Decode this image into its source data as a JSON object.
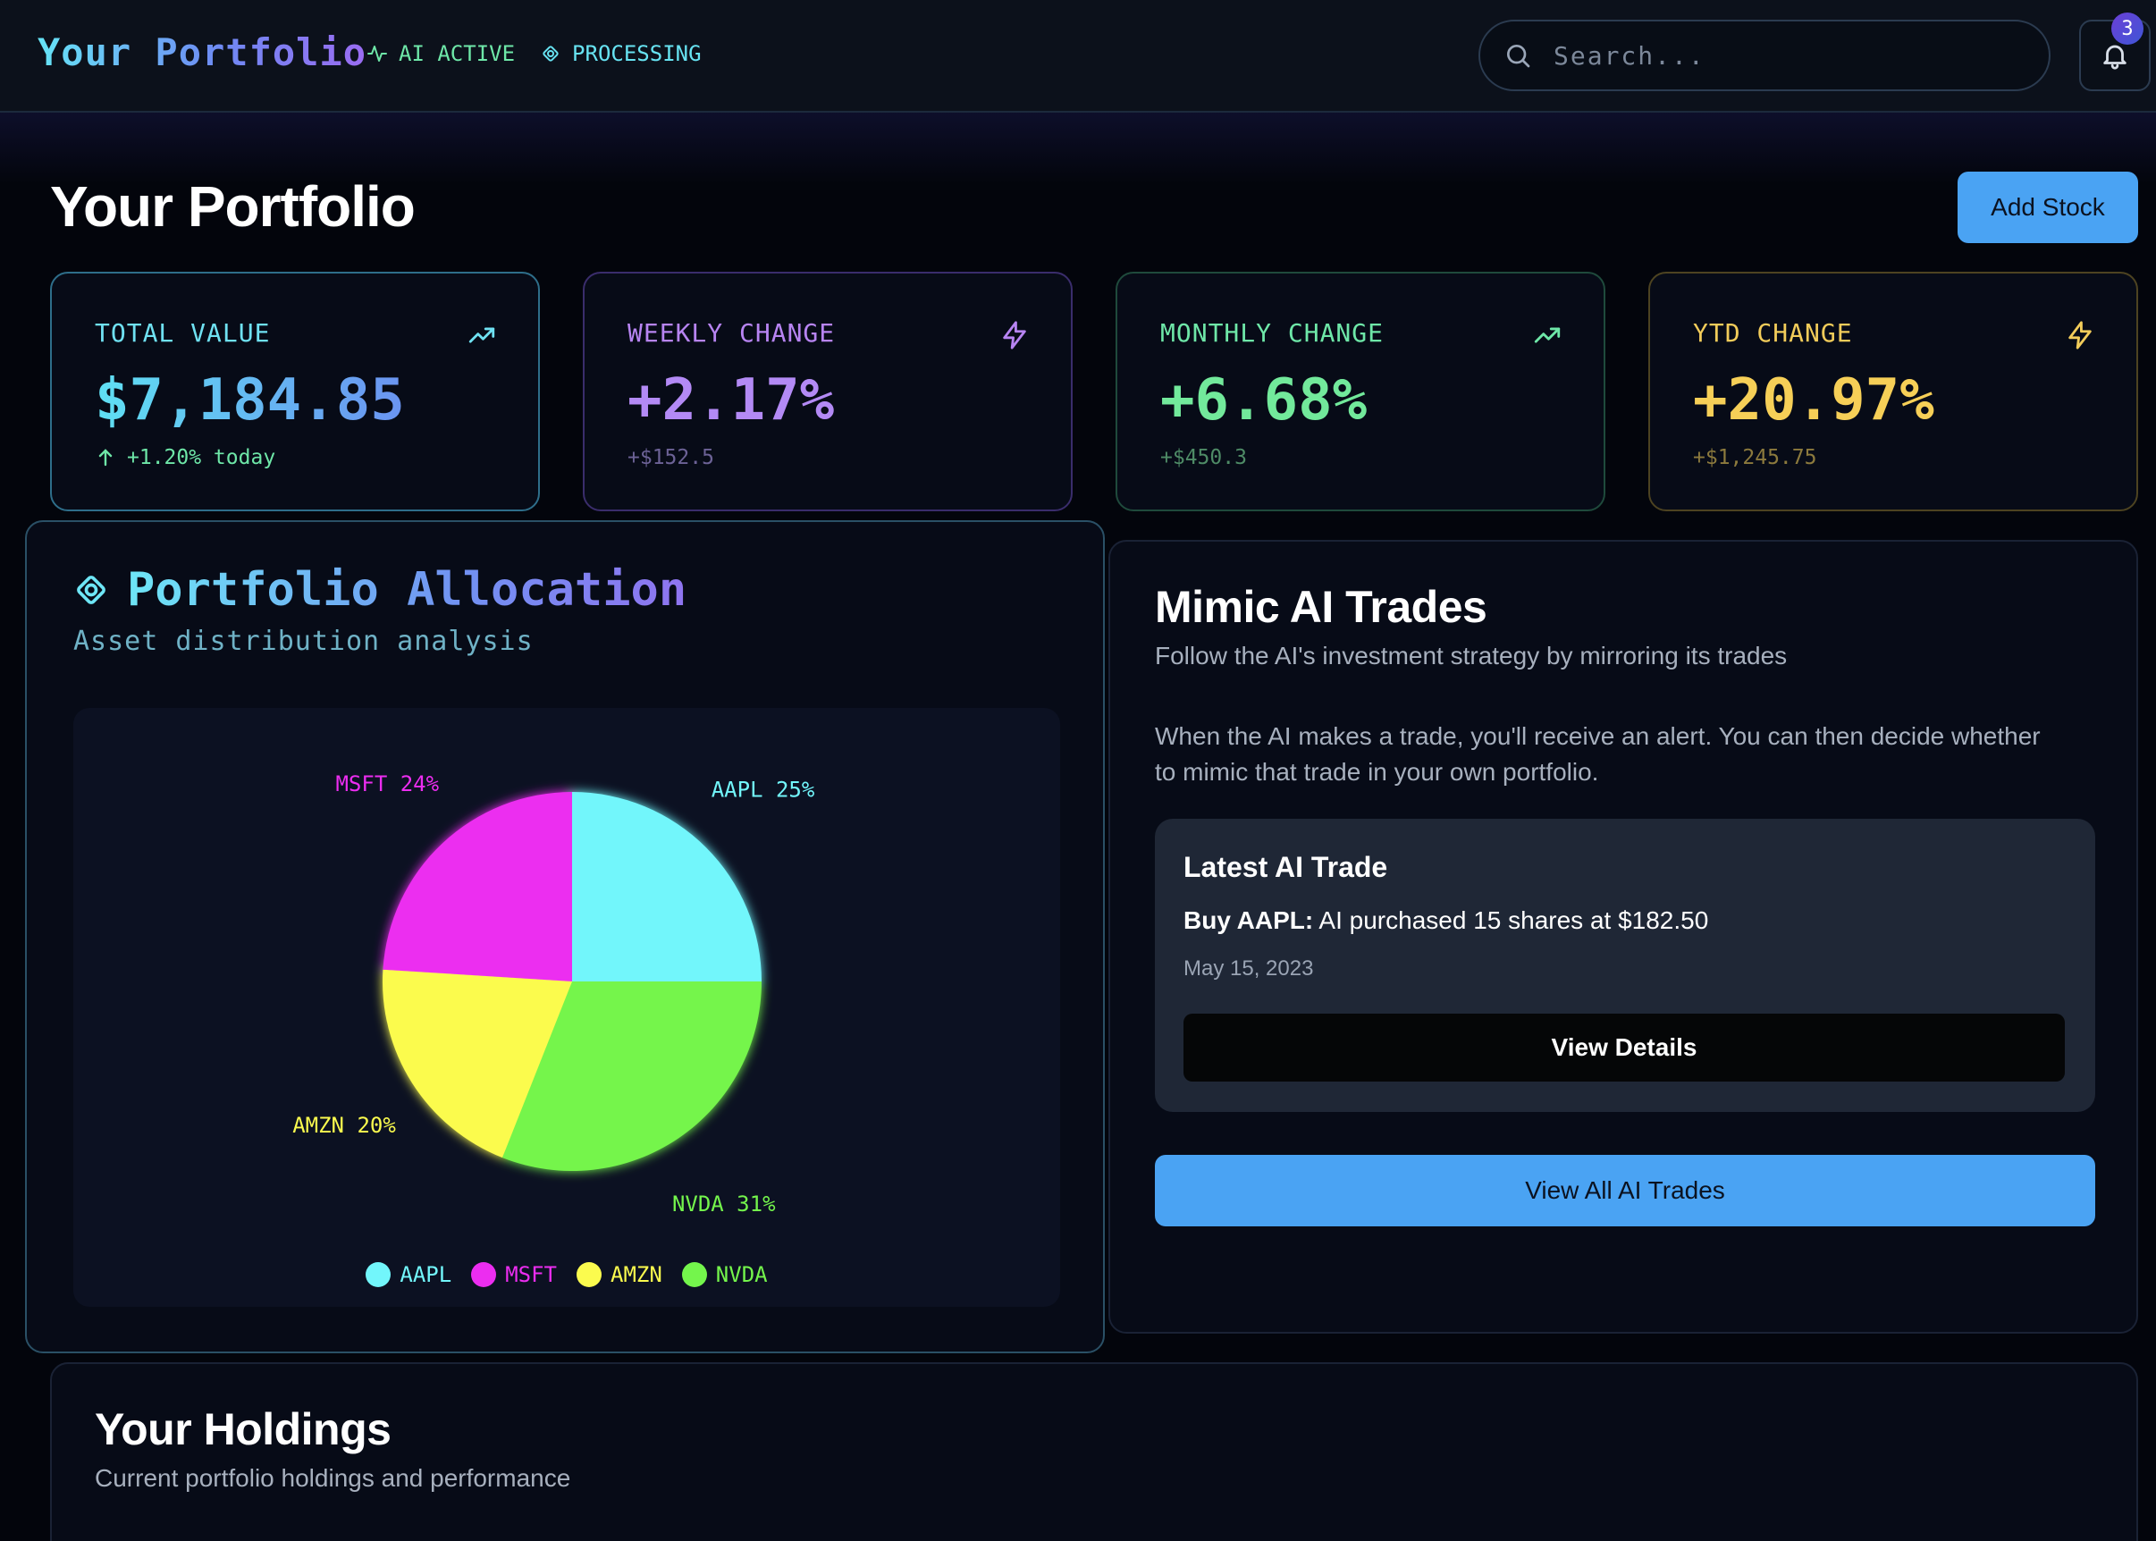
{
  "topbar": {
    "brand": "Your Portfolio",
    "status_ai": "AI ACTIVE",
    "status_processing": "PROCESSING",
    "search_placeholder": "Search...",
    "notification_count": "3"
  },
  "header": {
    "title": "Your Portfolio",
    "add_stock_label": "Add Stock"
  },
  "stats": [
    {
      "label": "TOTAL VALUE",
      "value": "$7,184.85",
      "sub": "+1.20% today",
      "icon": "trending-up-icon"
    },
    {
      "label": "WEEKLY CHANGE",
      "value": "+2.17%",
      "sub": "+$152.5",
      "icon": "lightning-icon"
    },
    {
      "label": "MONTHLY CHANGE",
      "value": "+6.68%",
      "sub": "+$450.3",
      "icon": "trending-up-icon"
    },
    {
      "label": "YTD CHANGE",
      "value": "+20.97%",
      "sub": "+$1,245.75",
      "icon": "lightning-icon"
    }
  ],
  "allocation": {
    "title": "Portfolio Allocation",
    "subtitle": "Asset distribution analysis"
  },
  "chart_data": {
    "type": "pie",
    "title": "Portfolio Allocation",
    "categories": [
      "AAPL",
      "NVDA",
      "AMZN",
      "MSFT"
    ],
    "values": [
      25,
      31,
      20,
      24
    ],
    "slice_labels": [
      "AAPL 25%",
      "NVDA 31%",
      "AMZN 20%",
      "MSFT 24%"
    ],
    "colors": [
      "#72f6fb",
      "#74f54c",
      "#fbfb4e",
      "#ec2df0"
    ],
    "legend": [
      "AAPL",
      "MSFT",
      "AMZN",
      "NVDA"
    ],
    "legend_colors": [
      "#72f6fb",
      "#ec2df0",
      "#fbfb4e",
      "#74f54c"
    ],
    "legend_position": "bottom-center"
  },
  "mimic": {
    "title": "Mimic AI Trades",
    "subtitle": "Follow the AI's investment strategy by mirroring its trades",
    "description": "When the AI makes a trade, you'll receive an alert. You can then decide whether to mimic that trade in your own portfolio.",
    "latest_title": "Latest AI Trade",
    "trade_action": "Buy AAPL:",
    "trade_detail": "AI purchased 15 shares at $182.50",
    "trade_date": "May 15, 2023",
    "view_details_label": "View Details",
    "view_all_label": "View All AI Trades"
  },
  "holdings": {
    "title": "Your Holdings",
    "subtitle": "Current portfolio holdings and performance"
  },
  "colors": {
    "accent_blue": "#4aa3f3",
    "cyan": "#6fe1f2",
    "purple": "#b38af5",
    "green": "#72e99b",
    "yellow": "#f6cf57"
  }
}
